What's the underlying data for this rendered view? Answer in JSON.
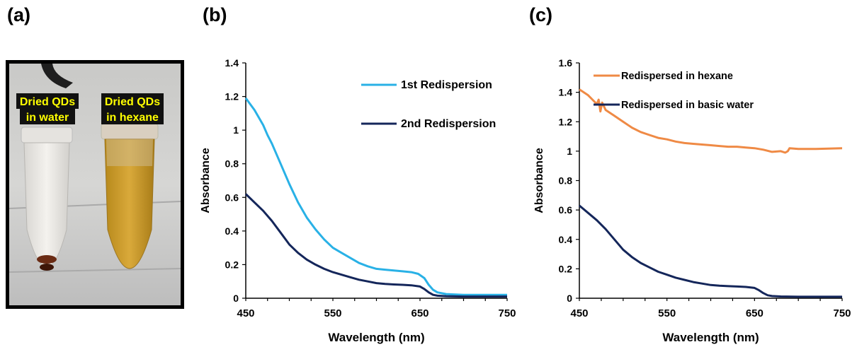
{
  "panels": {
    "a": "(a)",
    "b": "(b)",
    "c": "(c)"
  },
  "photo": {
    "left_label_line1": "Dried QDs",
    "left_label_line2": "in water",
    "right_label_line1": "Dried QDs",
    "right_label_line2": "in hexane"
  },
  "chart_data": [
    {
      "type": "line",
      "xlabel": "Wavelength (nm)",
      "ylabel": "Absorbance",
      "xlim": [
        450,
        750
      ],
      "ylim": [
        0,
        1.4
      ],
      "xticks": [
        450,
        550,
        650,
        750
      ],
      "yticks": [
        0,
        0.2,
        0.4,
        0.6,
        0.8,
        1,
        1.2,
        1.4
      ],
      "ytick_labels": [
        "0",
        "0.2",
        "0.4",
        "0.6",
        "0.8",
        "1",
        "1.2",
        "1.4"
      ],
      "grid": false,
      "legend_position": "top-right",
      "series": [
        {
          "name": "1st Redispersion",
          "color": "#29b1e6",
          "x": [
            450,
            460,
            470,
            475,
            480,
            490,
            500,
            510,
            520,
            530,
            540,
            550,
            560,
            570,
            580,
            590,
            600,
            610,
            620,
            630,
            640,
            648,
            655,
            660,
            665,
            670,
            680,
            700,
            750
          ],
          "y": [
            1.19,
            1.12,
            1.03,
            0.97,
            0.92,
            0.8,
            0.68,
            0.57,
            0.48,
            0.41,
            0.35,
            0.3,
            0.27,
            0.24,
            0.21,
            0.19,
            0.175,
            0.17,
            0.165,
            0.16,
            0.155,
            0.145,
            0.12,
            0.08,
            0.05,
            0.035,
            0.025,
            0.02,
            0.02
          ]
        },
        {
          "name": "2nd Redispersion",
          "color": "#14265a",
          "x": [
            450,
            460,
            470,
            480,
            490,
            500,
            510,
            520,
            530,
            540,
            550,
            560,
            570,
            580,
            590,
            600,
            610,
            620,
            630,
            640,
            650,
            655,
            660,
            665,
            670,
            680,
            700,
            750
          ],
          "y": [
            0.62,
            0.57,
            0.52,
            0.46,
            0.39,
            0.32,
            0.27,
            0.23,
            0.2,
            0.175,
            0.155,
            0.14,
            0.125,
            0.11,
            0.1,
            0.09,
            0.085,
            0.082,
            0.08,
            0.077,
            0.07,
            0.055,
            0.035,
            0.02,
            0.015,
            0.012,
            0.01,
            0.01
          ]
        }
      ]
    },
    {
      "type": "line",
      "xlabel": "Wavelength (nm)",
      "ylabel": "Absorbance",
      "xlim": [
        450,
        750
      ],
      "ylim": [
        0,
        1.6
      ],
      "xticks": [
        450,
        550,
        650,
        750
      ],
      "yticks": [
        0,
        0.2,
        0.4,
        0.6,
        0.8,
        1,
        1.2,
        1.4,
        1.6
      ],
      "ytick_labels": [
        "0",
        "0.2",
        "0.4",
        "0.6",
        "0.8",
        "1",
        "1.2",
        "1.4",
        "1.6"
      ],
      "grid": false,
      "legend_position": "top-right",
      "series": [
        {
          "name": "Redispersed in hexane",
          "color": "#ef8a45",
          "x": [
            450,
            455,
            460,
            465,
            470,
            472,
            474,
            476,
            480,
            490,
            500,
            510,
            520,
            530,
            540,
            550,
            560,
            570,
            580,
            590,
            600,
            610,
            620,
            630,
            640,
            650,
            660,
            670,
            680,
            685,
            688,
            690,
            700,
            720,
            750
          ],
          "y": [
            1.42,
            1.4,
            1.38,
            1.35,
            1.32,
            1.35,
            1.27,
            1.33,
            1.28,
            1.24,
            1.2,
            1.16,
            1.13,
            1.11,
            1.09,
            1.08,
            1.065,
            1.055,
            1.05,
            1.045,
            1.04,
            1.035,
            1.03,
            1.03,
            1.025,
            1.02,
            1.01,
            0.995,
            1.0,
            0.99,
            1.0,
            1.02,
            1.015,
            1.015,
            1.02
          ]
        },
        {
          "name": "Redispersed in basic water",
          "color": "#14265a",
          "x": [
            450,
            460,
            470,
            480,
            490,
            500,
            510,
            520,
            530,
            540,
            550,
            560,
            570,
            580,
            590,
            600,
            610,
            620,
            630,
            640,
            650,
            655,
            660,
            665,
            670,
            680,
            700,
            750
          ],
          "y": [
            0.63,
            0.58,
            0.53,
            0.47,
            0.4,
            0.33,
            0.28,
            0.24,
            0.21,
            0.18,
            0.16,
            0.14,
            0.125,
            0.11,
            0.1,
            0.09,
            0.085,
            0.082,
            0.08,
            0.077,
            0.07,
            0.055,
            0.035,
            0.02,
            0.015,
            0.012,
            0.01,
            0.01
          ]
        }
      ]
    }
  ]
}
